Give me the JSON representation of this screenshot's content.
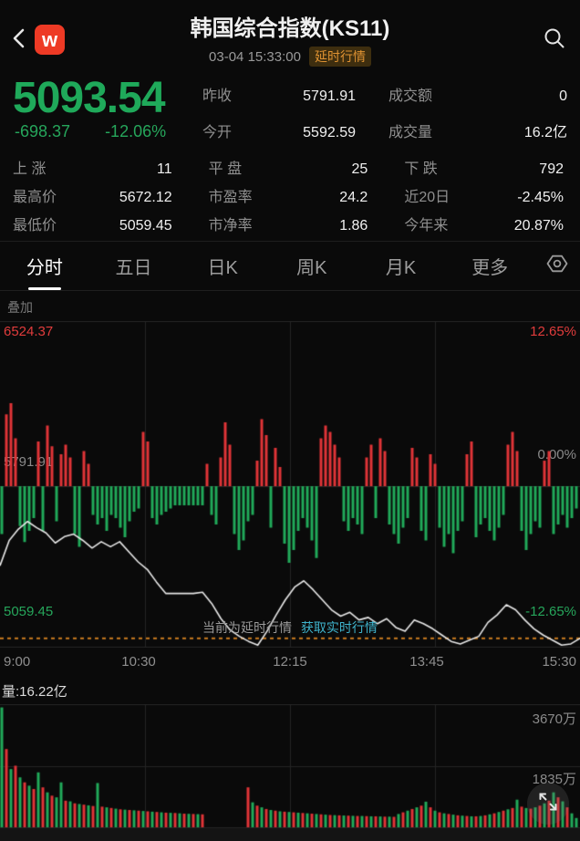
{
  "colors": {
    "up_red": "#e03437",
    "down_green": "#21a95a",
    "price_green": "#1fa95a",
    "line_white": "#e8e8e8",
    "dashed_orange": "#c87a1f",
    "link_cyan": "#3fb3cc",
    "badge_text": "#df9232",
    "badge_bg": "#3e2e0f",
    "grid": "#242424",
    "label_gray": "#8a8a8a"
  },
  "header": {
    "title": "韩国综合指数(KS11)",
    "timestamp": "03-04 15:33:00",
    "badge": "延时行情",
    "logo": "w"
  },
  "quote": {
    "price": "5093.54",
    "change": "-698.37",
    "change_pct": "-12.06%",
    "top_stats": [
      {
        "label": "昨收",
        "value": "5791.91"
      },
      {
        "label": "成交额",
        "value": "0"
      },
      {
        "label": "今开",
        "value": "5592.59"
      },
      {
        "label": "成交量",
        "value": "16.2亿"
      }
    ],
    "grid_stats": [
      {
        "label": "上 涨",
        "value": "11"
      },
      {
        "label": "平 盘",
        "value": "25"
      },
      {
        "label": "下 跌",
        "value": "792"
      },
      {
        "label": "最高价",
        "value": "5672.12"
      },
      {
        "label": "市盈率",
        "value": "24.2"
      },
      {
        "label": "近20日",
        "value": "-2.45%"
      },
      {
        "label": "最低价",
        "value": "5059.45"
      },
      {
        "label": "市净率",
        "value": "1.86"
      },
      {
        "label": "今年来",
        "value": "20.87%"
      }
    ]
  },
  "tabs": [
    {
      "label": "分时",
      "active": true
    },
    {
      "label": "五日"
    },
    {
      "label": "日K"
    },
    {
      "label": "周K"
    },
    {
      "label": "月K"
    },
    {
      "label": "更多"
    }
  ],
  "overlay_button": "叠加",
  "notice": {
    "prefix": "当前为延时行情",
    "link": "获取实时行情"
  },
  "chart_data": [
    {
      "type": "line",
      "name": "intraday_price_pct_vs_prev_close",
      "x_ticks": [
        "9:00",
        "10:30",
        "12:15",
        "13:45",
        "15:30"
      ],
      "y_left_labels": [
        "6524.37",
        "5791.91",
        "5059.45"
      ],
      "y_right_labels": [
        "12.65%",
        "0.00%",
        "-12.65%"
      ],
      "ylim_pct": [
        -12.65,
        12.65
      ],
      "prev_close": 5791.91,
      "last_pct": -12.06,
      "line_pct": [
        -6.3,
        -4.3,
        -3.4,
        -2.8,
        -3.3,
        -3.7,
        -4.5,
        -4.0,
        -3.8,
        -4.3,
        -4.9,
        -4.4,
        -4.8,
        -4.4,
        -5.2,
        -6.0,
        -6.6,
        -7.6,
        -8.5,
        -8.5,
        -8.5,
        -8.5,
        -8.4,
        -9.3,
        -10.5,
        -11.4,
        -11.9,
        -12.3,
        -12.6,
        -11.5,
        -10.2,
        -9.0,
        -8.0,
        -7.5,
        -8.2,
        -9.0,
        -9.8,
        -10.3,
        -10.0,
        -10.6,
        -10.4,
        -10.9,
        -10.5,
        -11.2,
        -11.5,
        -10.6,
        -10.9,
        -11.3,
        -11.8,
        -12.3,
        -12.5,
        -12.2,
        -11.9,
        -10.8,
        -10.2,
        -9.4,
        -9.8,
        -10.6,
        -11.3,
        -11.8,
        -12.2,
        -12.6,
        -12.5,
        -12.06
      ],
      "tick_bars_pct": [
        -30,
        45,
        52,
        30,
        -25,
        -35,
        -28,
        -20,
        28,
        -28,
        38,
        25,
        -22,
        20,
        26,
        18,
        -30,
        -38,
        22,
        14,
        -18,
        -24,
        -20,
        -28,
        -18,
        -20,
        -26,
        -32,
        -22,
        -16,
        -14,
        34,
        28,
        -20,
        -24,
        -18,
        -16,
        -14,
        -12,
        -12,
        -12,
        -12,
        -12,
        -12,
        -12,
        14,
        -18,
        -24,
        18,
        40,
        26,
        -30,
        -40,
        -34,
        -22,
        -18,
        16,
        42,
        32,
        -26,
        24,
        12,
        -36,
        -48,
        -40,
        -28,
        -20,
        -26,
        -34,
        -45,
        30,
        38,
        34,
        26,
        18,
        -22,
        -28,
        -20,
        -24,
        -30,
        18,
        26,
        -20,
        30,
        22,
        -24,
        -30,
        -36,
        -26,
        -20,
        24,
        18,
        -28,
        -34,
        20,
        14,
        -26,
        -38,
        -30,
        -42,
        -28,
        -22,
        20,
        28,
        -32,
        -24,
        -20,
        -28,
        -34,
        -26,
        -18,
        26,
        34,
        22,
        -28,
        -40,
        -30,
        -22,
        -26,
        16,
        22,
        -30,
        -24,
        -18,
        -26,
        -20,
        -14
      ]
    },
    {
      "type": "bar",
      "name": "volume",
      "label": "量:16.22亿",
      "y_tick_labels": [
        "3670万",
        "1835万"
      ],
      "ymax_wan": 3670,
      "bars_wan": [
        -3600,
        2350,
        -1750,
        1850,
        -1500,
        1350,
        -1250,
        1150,
        -1650,
        1200,
        -1050,
        950,
        -900,
        -1350,
        800,
        -780,
        720,
        -700,
        680,
        -660,
        640,
        -1330,
        620,
        -600,
        580,
        -560,
        540,
        -530,
        520,
        -510,
        500,
        -490,
        480,
        -470,
        460,
        -450,
        440,
        -435,
        430,
        -420,
        410,
        -405,
        400,
        -395,
        390,
        0,
        0,
        0,
        0,
        0,
        0,
        0,
        0,
        0,
        1200,
        -750,
        650,
        -600,
        550,
        -520,
        500,
        -480,
        470,
        -460,
        450,
        -440,
        430,
        -420,
        410,
        -400,
        390,
        -380,
        370,
        -365,
        360,
        -355,
        350,
        -345,
        340,
        -340,
        335,
        -330,
        330,
        -325,
        320,
        -320,
        315,
        -400,
        450,
        -500,
        550,
        -600,
        650,
        -770,
        600,
        -500,
        450,
        -420,
        400,
        -380,
        360,
        -350,
        340,
        -330,
        330,
        -340,
        360,
        -390,
        420,
        -460,
        500,
        -540,
        580,
        -830,
        620,
        -580,
        560,
        -600,
        650,
        -720,
        800,
        -1050,
        900,
        -780,
        600,
        -420,
        -280
      ]
    }
  ]
}
